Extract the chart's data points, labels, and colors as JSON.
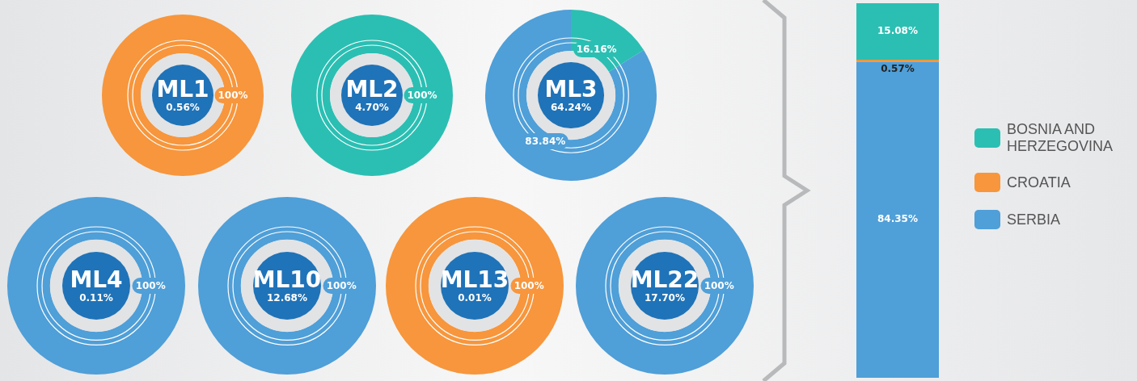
{
  "chart_data": [
    {
      "type": "donut",
      "title": "ML1",
      "subtitle": "0.56%",
      "categories": [
        null
      ],
      "values": [
        100
      ],
      "colors": [
        "#f7963c"
      ],
      "value_labels": [
        "100%"
      ]
    },
    {
      "type": "donut",
      "title": "ML2",
      "subtitle": "4.70%",
      "categories": [
        null
      ],
      "values": [
        100
      ],
      "colors": [
        "#2bbfb3"
      ],
      "value_labels": [
        "100%"
      ]
    },
    {
      "type": "donut",
      "title": "ML3",
      "subtitle": "64.24%",
      "categories": [
        null,
        null
      ],
      "values": [
        16.16,
        83.84
      ],
      "colors": [
        "#2bbfb3",
        "#4f9fd8"
      ],
      "value_labels": [
        "16.16%",
        "83.84%"
      ]
    },
    {
      "type": "donut",
      "title": "ML4",
      "subtitle": "0.11%",
      "categories": [
        null
      ],
      "values": [
        100
      ],
      "colors": [
        "#4f9fd8"
      ],
      "value_labels": [
        "100%"
      ]
    },
    {
      "type": "donut",
      "title": "ML10",
      "subtitle": "12.68%",
      "categories": [
        null
      ],
      "values": [
        100
      ],
      "colors": [
        "#4f9fd8"
      ],
      "value_labels": [
        "100%"
      ]
    },
    {
      "type": "donut",
      "title": "ML13",
      "subtitle": "0.01%",
      "categories": [
        null
      ],
      "values": [
        100
      ],
      "colors": [
        "#f7963c"
      ],
      "value_labels": [
        "100%"
      ]
    },
    {
      "type": "donut",
      "title": "ML22",
      "subtitle": "17.70%",
      "categories": [
        null
      ],
      "values": [
        100
      ],
      "colors": [
        "#4f9fd8"
      ],
      "value_labels": [
        "100%"
      ]
    },
    {
      "type": "bar",
      "stacked": true,
      "categories": [
        null
      ],
      "legend": "right",
      "tick_labels": false,
      "series": [
        {
          "name": "SERBIA",
          "color": "#4f9fd8",
          "values": [
            84.35
          ],
          "value_labels": [
            "84.35%"
          ]
        },
        {
          "name": "CROATIA",
          "color": "#f7963c",
          "values": [
            0.57
          ],
          "value_labels": [
            "0.57%"
          ]
        },
        {
          "name": "BOSNIA AND HERZEGOVINA",
          "color": "#2bbfb3",
          "values": [
            15.08
          ],
          "value_labels": [
            "15.08%"
          ]
        }
      ]
    }
  ]
}
